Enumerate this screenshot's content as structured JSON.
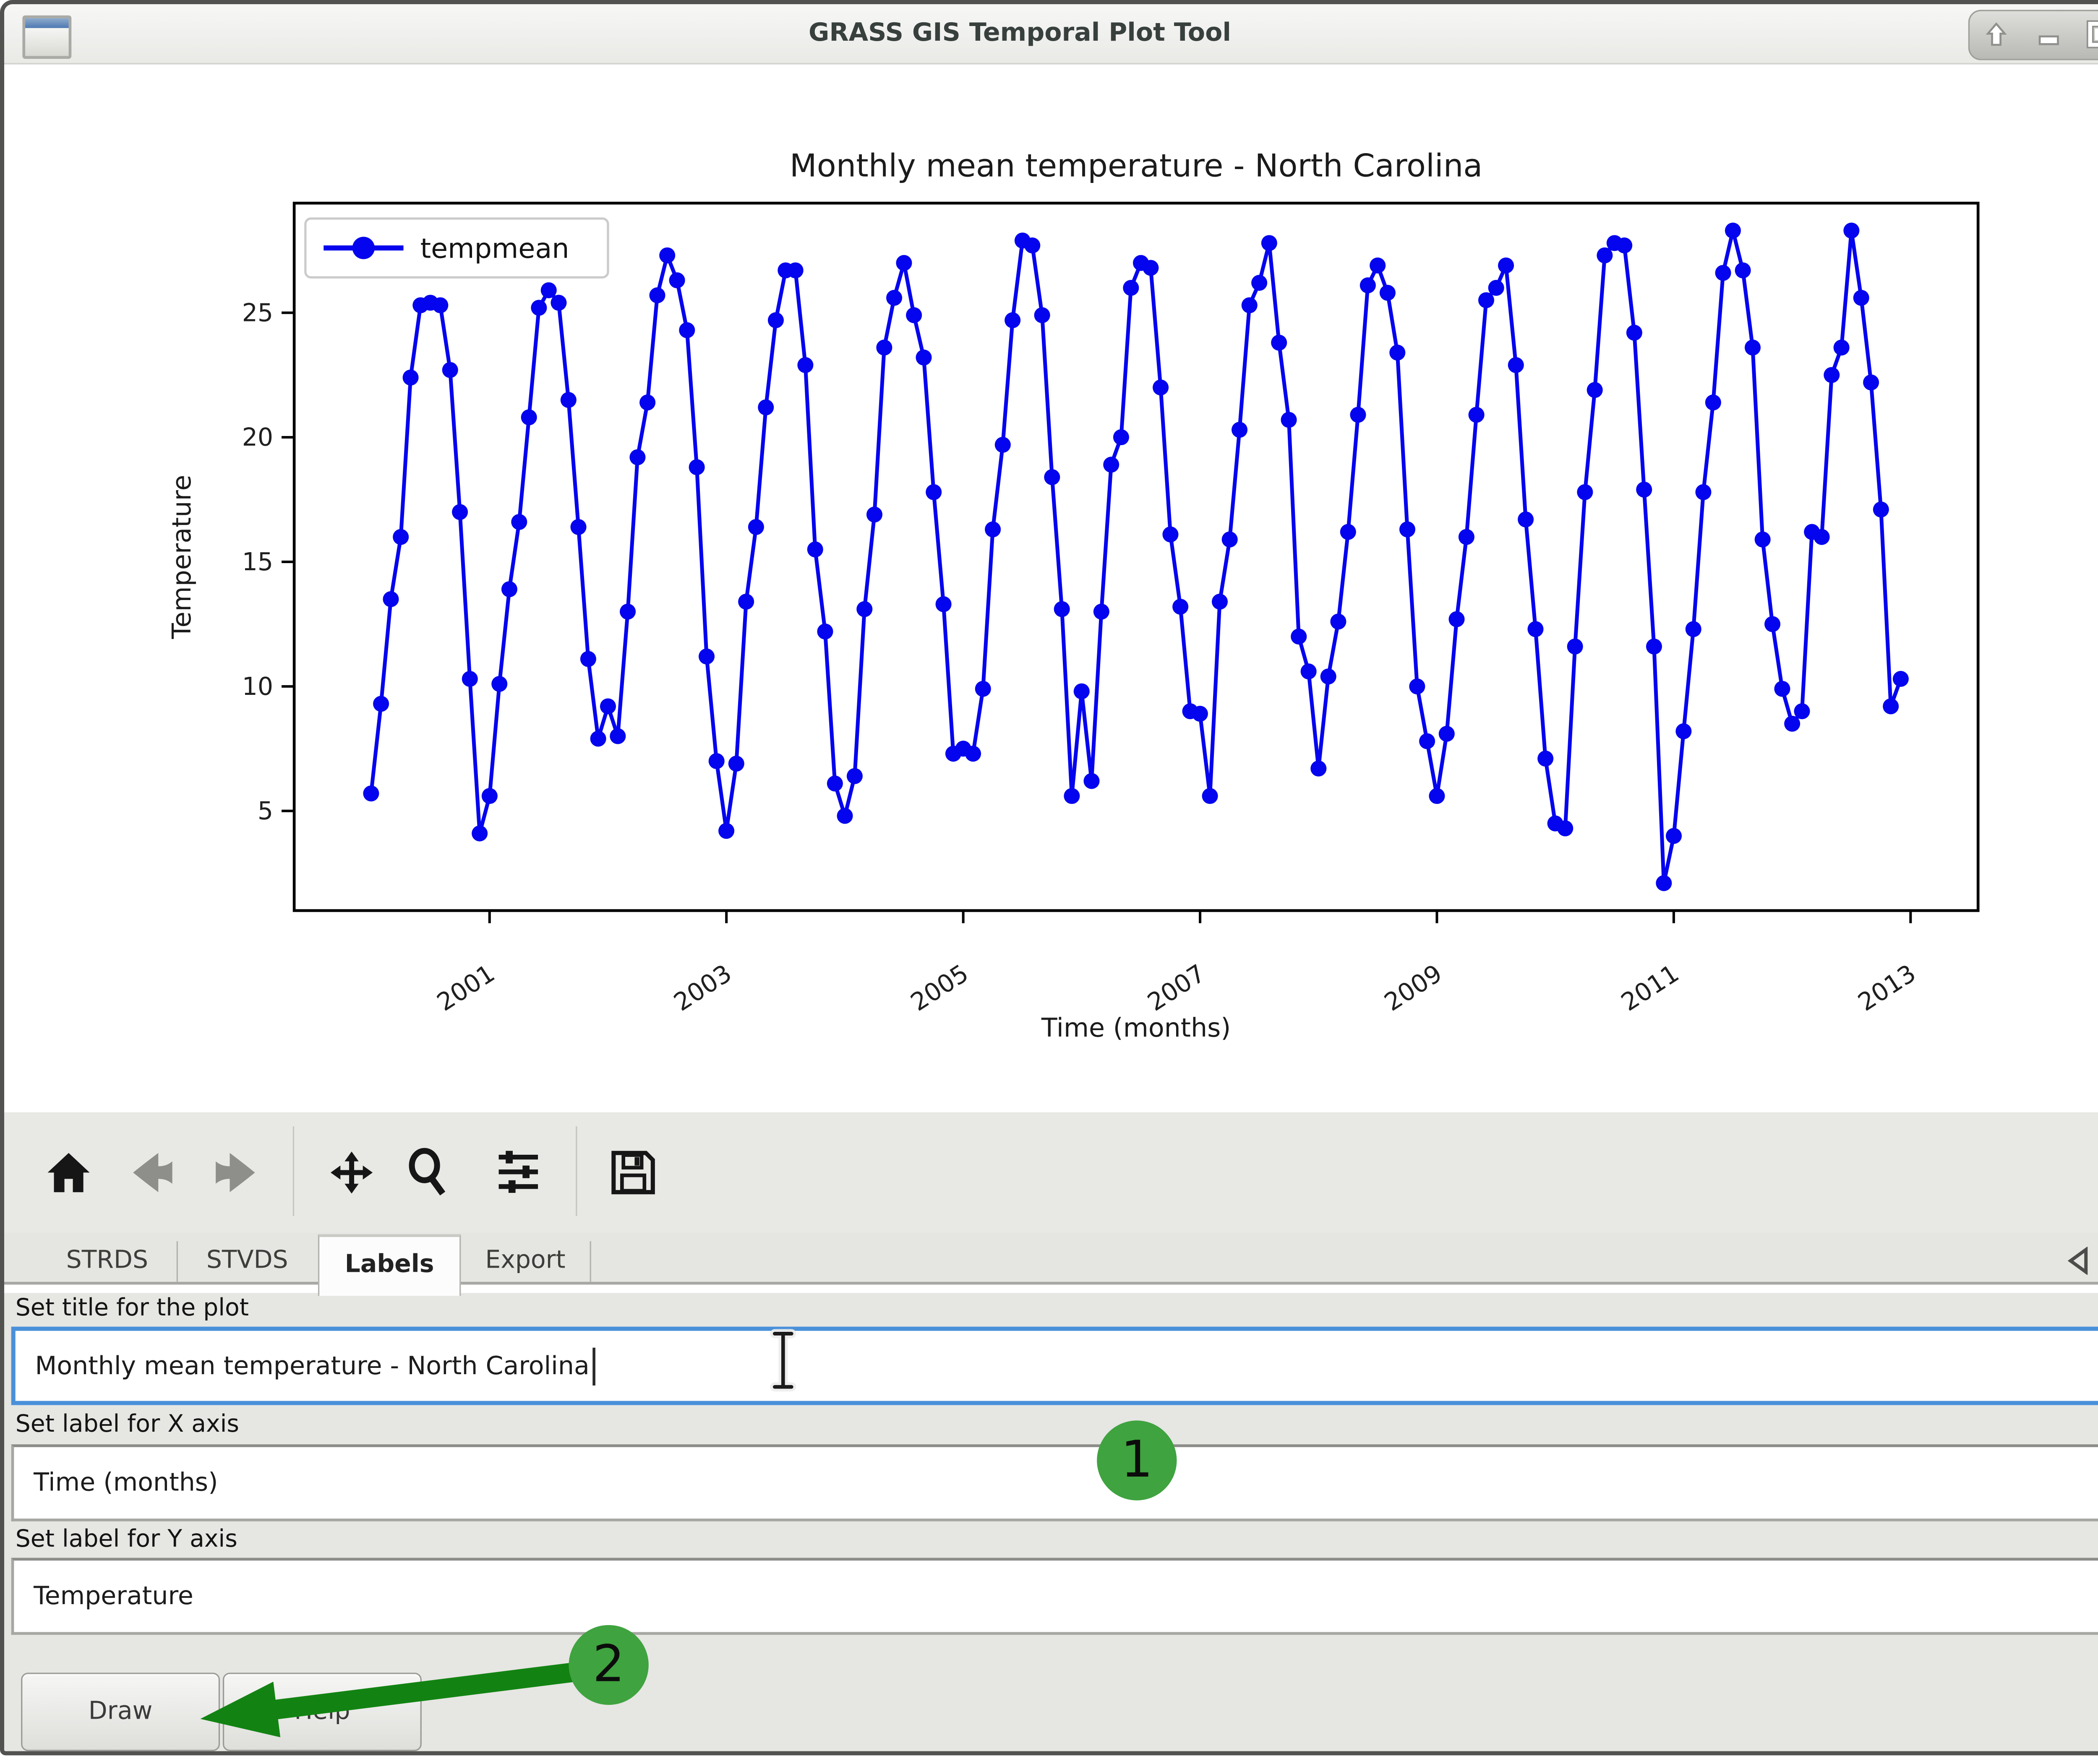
{
  "window": {
    "title": "GRASS GIS Temporal Plot Tool"
  },
  "window_controls": {
    "shade": "shade-window",
    "minimize": "minimize-window",
    "maximize": "maximize-window",
    "close": "close-window"
  },
  "chart_data": {
    "type": "line",
    "title": "Monthly mean temperature - North Carolina",
    "xlabel": "Time (months)",
    "ylabel": "Temperature",
    "legend_position": "upper left",
    "grid": false,
    "x_ticks": [
      2001,
      2003,
      2005,
      2007,
      2009,
      2011,
      2013
    ],
    "y_ticks": [
      5,
      10,
      15,
      20,
      25
    ],
    "xlim": [
      1999.35,
      2013.57
    ],
    "ylim": [
      1.0,
      29.4
    ],
    "legend": [
      {
        "label": "tempmean",
        "color": "#0404ee",
        "marker": "circle"
      }
    ],
    "series": [
      {
        "name": "tempmean",
        "start": "2000-01",
        "interval_months": 1,
        "values": [
          5.7,
          9.3,
          13.5,
          16.0,
          22.4,
          25.3,
          25.4,
          25.3,
          22.7,
          17.0,
          10.3,
          4.1,
          5.6,
          10.1,
          13.9,
          16.6,
          20.8,
          25.2,
          25.9,
          25.4,
          21.5,
          16.4,
          11.1,
          7.9,
          9.2,
          8.0,
          13.0,
          19.2,
          21.4,
          25.7,
          27.3,
          26.3,
          24.3,
          18.8,
          11.2,
          7.0,
          4.2,
          6.9,
          13.4,
          16.4,
          21.2,
          24.7,
          26.7,
          26.7,
          22.9,
          15.5,
          12.2,
          6.1,
          4.8,
          6.4,
          13.1,
          16.9,
          23.6,
          25.6,
          27.0,
          24.9,
          23.2,
          17.8,
          13.3,
          7.3,
          7.5,
          7.3,
          9.9,
          16.3,
          19.7,
          24.7,
          27.9,
          27.7,
          24.9,
          18.4,
          13.1,
          5.6,
          9.8,
          6.2,
          13.0,
          18.9,
          20.0,
          26.0,
          27.0,
          26.8,
          22.0,
          16.1,
          13.2,
          9.0,
          8.9,
          5.6,
          13.4,
          15.9,
          20.3,
          25.3,
          26.2,
          27.8,
          23.8,
          20.7,
          12.0,
          10.6,
          6.7,
          10.4,
          12.6,
          16.2,
          20.9,
          26.1,
          26.9,
          25.8,
          23.4,
          16.3,
          10.0,
          7.8,
          5.6,
          8.1,
          12.7,
          16.0,
          20.9,
          25.5,
          26.0,
          26.9,
          22.9,
          16.7,
          12.3,
          7.1,
          4.5,
          4.3,
          11.6,
          17.8,
          21.9,
          27.3,
          27.8,
          27.7,
          24.2,
          17.9,
          11.6,
          2.1,
          4.0,
          8.2,
          12.3,
          17.8,
          21.4,
          26.6,
          28.3,
          26.7,
          23.6,
          15.9,
          12.5,
          9.9,
          8.5,
          9.0,
          16.2,
          16.0,
          22.5,
          23.6,
          28.3,
          25.6,
          22.2,
          17.1,
          9.2,
          10.3
        ]
      }
    ]
  },
  "toolbar": {
    "icons": [
      "home",
      "back",
      "forward",
      "pan",
      "zoom",
      "configure-subplots",
      "save"
    ]
  },
  "tabs": {
    "active": "Labels",
    "items": [
      {
        "label": "STRDS"
      },
      {
        "label": "STVDS"
      },
      {
        "label": "Labels"
      },
      {
        "label": "Export"
      }
    ],
    "nav": [
      "previous-tab",
      "next-tab",
      "close-tab"
    ]
  },
  "form": {
    "title_label": "Set title for the plot",
    "title_value": "Monthly mean temperature - North Carolina",
    "xaxis_label": "Set label for X axis",
    "xaxis_value": "Time (months)",
    "yaxis_label": "Set label for Y axis",
    "yaxis_value": "Temperature"
  },
  "buttons": {
    "draw": "Draw",
    "help": "Help"
  },
  "annotations": {
    "step1": "1",
    "step2": "2",
    "circle_color": "#3fa33f",
    "arrow_color": "#128312"
  },
  "colors": {
    "focus_border": "#4a90d9",
    "line_color": "#0404ee"
  }
}
